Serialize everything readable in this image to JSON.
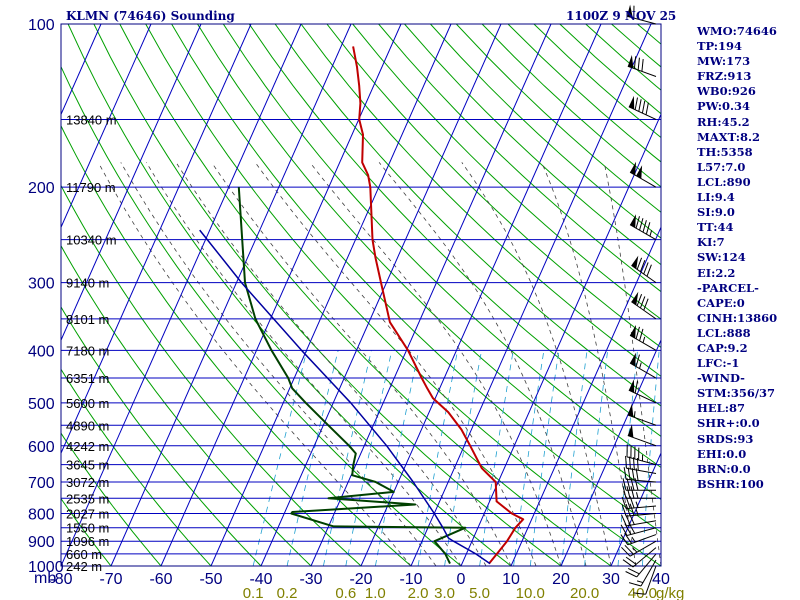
{
  "header": {
    "title_left": "KLMN (74646) Sounding",
    "title_right": "1100Z  9 NOV 25"
  },
  "indices": [
    "WMO:74646",
    "TP:194",
    "MW:173",
    "FRZ:913",
    "WB0:926",
    "PW:0.34",
    "RH:45.2",
    "MAXT:8.2",
    "TH:5358",
    "L57:7.0",
    "LCL:890",
    "LI:9.4",
    "SI:9.0",
    "TT:44",
    "KI:7",
    "SW:124",
    "EI:2.2",
    "-PARCEL-",
    "CAPE:0",
    "CINH:13860",
    "LCL:888",
    "CAP:9.2",
    "LFC:-1",
    "-WIND-",
    "STM:356/37",
    "HEL:87",
    "SHR+:0.0",
    "SRDS:93",
    "EHI:0.0",
    "BRN:0.0",
    "BSHR:100"
  ],
  "colors": {
    "frame": "#000080",
    "isobar": "#0000c0",
    "isotherm": "#0000c0",
    "dry_adiabat": "#00a000",
    "moist_adiabat": "#404040",
    "mixing_ratio": "#20a0d0",
    "temperature": "#c00000",
    "dewpoint": "#004000",
    "parcel": "#0000a0",
    "axis_text": "#000080",
    "mixing_label": "#808000",
    "wind_barb": "#000000"
  },
  "chart_data": {
    "type": "line",
    "title": "KLMN (74646) Sounding",
    "xlabel": "",
    "ylabel": "mb",
    "y_scale": "log",
    "ylim": [
      1000,
      100
    ],
    "xlim": [
      -80,
      40
    ],
    "x_ticks": [
      -80,
      -70,
      -60,
      -50,
      -40,
      -30,
      -20,
      -10,
      0,
      10,
      20,
      30,
      40
    ],
    "x_tick_labels": [
      "-80",
      "-70",
      "-60",
      "-50",
      "-40",
      "-30",
      "-20",
      "-10",
      "0",
      "10",
      "20",
      "30",
      "40"
    ],
    "pressure_ticks": [
      100,
      200,
      300,
      400,
      500,
      600,
      700,
      800,
      900,
      1000
    ],
    "pressure_tick_labels": [
      "100",
      "200",
      "300",
      "400",
      "500",
      "600",
      "700",
      "800",
      "900",
      "1000"
    ],
    "y_unit_label": "mb",
    "height_labels": [
      {
        "p": 150,
        "text": "13840 m"
      },
      {
        "p": 200,
        "text": "11790 m"
      },
      {
        "p": 250,
        "text": "10340 m"
      },
      {
        "p": 300,
        "text": "9140 m"
      },
      {
        "p": 350,
        "text": "8101 m"
      },
      {
        "p": 400,
        "text": "7180 m"
      },
      {
        "p": 450,
        "text": "6351 m"
      },
      {
        "p": 500,
        "text": "5600 m"
      },
      {
        "p": 550,
        "text": "4890 m"
      },
      {
        "p": 600,
        "text": "4242 m"
      },
      {
        "p": 650,
        "text": "3645 m"
      },
      {
        "p": 700,
        "text": "3072 m"
      },
      {
        "p": 750,
        "text": "2535 m"
      },
      {
        "p": 800,
        "text": "2027 m"
      },
      {
        "p": 850,
        "text": "1550 m"
      },
      {
        "p": 900,
        "text": "1096 m"
      },
      {
        "p": 950,
        "text": "660 m"
      },
      {
        "p": 1000,
        "text": "242 m"
      }
    ],
    "mixing_ratio_labels": [
      {
        "w": 0.1,
        "text": "0.1"
      },
      {
        "w": 0.2,
        "text": "0.2"
      },
      {
        "w": 0.6,
        "text": "0.6"
      },
      {
        "w": 1.0,
        "text": "1.0"
      },
      {
        "w": 2.0,
        "text": "2.0"
      },
      {
        "w": 3.0,
        "text": "3.0"
      },
      {
        "w": 5.0,
        "text": "5.0"
      },
      {
        "w": 10.0,
        "text": "10.0"
      },
      {
        "w": 20.0,
        "text": "20.0"
      },
      {
        "w": 40.0,
        "text": "40.0"
      }
    ],
    "mixing_ratio_unit": "g/kg",
    "series": [
      {
        "key": "temperature",
        "points": [
          {
            "p": 990,
            "t": 5.4
          },
          {
            "p": 940,
            "t": 6.3
          },
          {
            "p": 900,
            "t": 7.0
          },
          {
            "p": 850,
            "t": 7.5
          },
          {
            "p": 820,
            "t": 8.3
          },
          {
            "p": 800,
            "t": 5.5
          },
          {
            "p": 760,
            "t": 1.4
          },
          {
            "p": 700,
            "t": -0.5
          },
          {
            "p": 660,
            "t": -4.5
          },
          {
            "p": 600,
            "t": -8.8
          },
          {
            "p": 560,
            "t": -12.0
          },
          {
            "p": 520,
            "t": -16.2
          },
          {
            "p": 490,
            "t": -20.5
          },
          {
            "p": 470,
            "t": -22.5
          },
          {
            "p": 450,
            "t": -24.5
          },
          {
            "p": 400,
            "t": -29.7
          },
          {
            "p": 355,
            "t": -35.8
          },
          {
            "p": 300,
            "t": -41.1
          },
          {
            "p": 270,
            "t": -44.4
          },
          {
            "p": 250,
            "t": -46.6
          },
          {
            "p": 200,
            "t": -51.7
          },
          {
            "p": 190,
            "t": -53.2
          },
          {
            "p": 180,
            "t": -55.5
          },
          {
            "p": 160,
            "t": -57.8
          },
          {
            "p": 150,
            "t": -59.9
          },
          {
            "p": 140,
            "t": -61.1
          },
          {
            "p": 130,
            "t": -62.9
          },
          {
            "p": 120,
            "t": -65.0
          },
          {
            "p": 110,
            "t": -67.6
          }
        ]
      },
      {
        "key": "dewpoint",
        "points": [
          {
            "p": 990,
            "t": -2.4
          },
          {
            "p": 950,
            "t": -4.2
          },
          {
            "p": 900,
            "t": -7.5
          },
          {
            "p": 850,
            "t": -2.5
          },
          {
            "p": 845,
            "t": -29.0
          },
          {
            "p": 800,
            "t": -38.6
          },
          {
            "p": 795,
            "t": -38.5
          },
          {
            "p": 770,
            "t": -14.6
          },
          {
            "p": 750,
            "t": -32.5
          },
          {
            "p": 730,
            "t": -20.0
          },
          {
            "p": 700,
            "t": -24.5
          },
          {
            "p": 680,
            "t": -29.8
          },
          {
            "p": 650,
            "t": -30.5
          },
          {
            "p": 620,
            "t": -31.0
          },
          {
            "p": 600,
            "t": -33.0
          },
          {
            "p": 550,
            "t": -39.0
          },
          {
            "p": 500,
            "t": -45.5
          },
          {
            "p": 470,
            "t": -49.5
          },
          {
            "p": 450,
            "t": -51.2
          },
          {
            "p": 400,
            "t": -57.0
          },
          {
            "p": 350,
            "t": -63.0
          },
          {
            "p": 300,
            "t": -68.3
          },
          {
            "p": 200,
            "t": -78.0
          }
        ]
      },
      {
        "key": "parcel",
        "points": [
          {
            "p": 990,
            "t": 5.6
          },
          {
            "p": 950,
            "t": 1.9
          },
          {
            "p": 900,
            "t": -3.7
          },
          {
            "p": 888,
            "t": -5.0
          },
          {
            "p": 850,
            "t": -7.0
          },
          {
            "p": 800,
            "t": -10.0
          },
          {
            "p": 700,
            "t": -17.0
          },
          {
            "p": 600,
            "t": -25.5
          },
          {
            "p": 500,
            "t": -36.5
          },
          {
            "p": 400,
            "t": -51.0
          },
          {
            "p": 300,
            "t": -69.0
          },
          {
            "p": 240,
            "t": -82.0
          }
        ]
      }
    ],
    "wind_profile": [
      {
        "p": 1000,
        "dir": 200,
        "spd": 10
      },
      {
        "p": 975,
        "dir": 210,
        "spd": 15
      },
      {
        "p": 950,
        "dir": 220,
        "spd": 20
      },
      {
        "p": 925,
        "dir": 230,
        "spd": 20
      },
      {
        "p": 900,
        "dir": 240,
        "spd": 25
      },
      {
        "p": 875,
        "dir": 250,
        "spd": 25
      },
      {
        "p": 850,
        "dir": 255,
        "spd": 30
      },
      {
        "p": 825,
        "dir": 260,
        "spd": 30
      },
      {
        "p": 800,
        "dir": 265,
        "spd": 35
      },
      {
        "p": 775,
        "dir": 265,
        "spd": 35
      },
      {
        "p": 750,
        "dir": 270,
        "spd": 35
      },
      {
        "p": 725,
        "dir": 270,
        "spd": 40
      },
      {
        "p": 700,
        "dir": 275,
        "spd": 40
      },
      {
        "p": 675,
        "dir": 280,
        "spd": 40
      },
      {
        "p": 650,
        "dir": 285,
        "spd": 45
      },
      {
        "p": 600,
        "dir": 290,
        "spd": 50
      },
      {
        "p": 550,
        "dir": 290,
        "spd": 55
      },
      {
        "p": 500,
        "dir": 295,
        "spd": 60
      },
      {
        "p": 450,
        "dir": 300,
        "spd": 65
      },
      {
        "p": 400,
        "dir": 300,
        "spd": 75
      },
      {
        "p": 350,
        "dir": 305,
        "spd": 80
      },
      {
        "p": 300,
        "dir": 305,
        "spd": 90
      },
      {
        "p": 250,
        "dir": 300,
        "spd": 95
      },
      {
        "p": 200,
        "dir": 300,
        "spd": 100
      },
      {
        "p": 150,
        "dir": 295,
        "spd": 90
      },
      {
        "p": 125,
        "dir": 290,
        "spd": 80
      },
      {
        "p": 100,
        "dir": 285,
        "spd": 60
      }
    ]
  }
}
